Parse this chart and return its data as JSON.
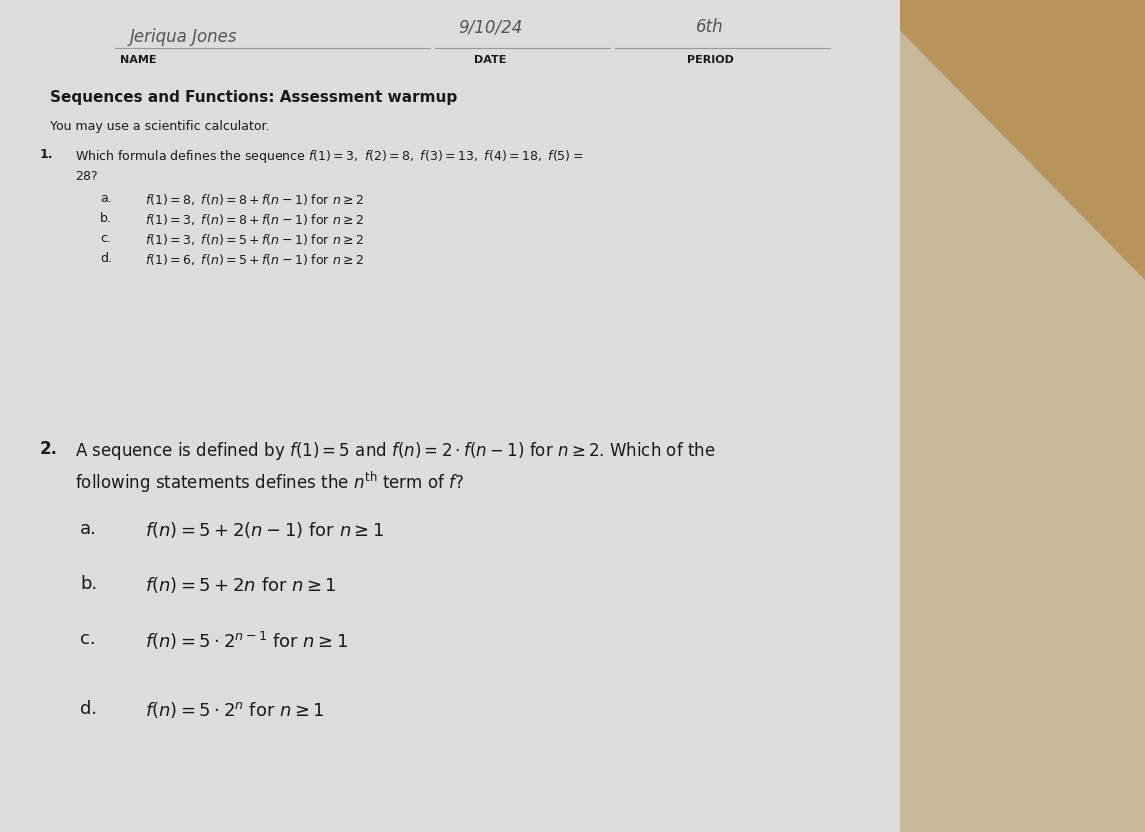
{
  "bg_color": "#c8b89a",
  "paper_color": "#dcdcdc",
  "wood_color": "#b8935a",
  "text_color": "#1a1a1a",
  "header_line_color": "#999999",
  "title": "Sequences and Functions: Assessment warmup",
  "subtitle": "You may use a scientific calculator.",
  "header_name_label": "NAME",
  "header_date_label": "DATE",
  "header_period_label": "PERIOD",
  "header_name_value": "Jeriqua Jones",
  "header_date_value": "9/10/24",
  "header_period_value": "6th",
  "q1_number": "1.",
  "q1_line1": "Which formula defines the sequence $f(1)=3,\\ f(2)=8,\\ f(3)=13,\\ f(4)=18,\\ f(5)=$",
  "q1_line2": "$28?$",
  "q1_labels": [
    "a.",
    "b.",
    "c.",
    "d."
  ],
  "q1_texts": [
    "$f(1)=8,\\ f(n)=8+f(n-1)$ for $n \\geq 2$",
    "$f(1)=3,\\ f(n)=8+f(n-1)$ for $n \\geq 2$",
    "$f(1)=3,\\ f(n)=5+f(n-1)$ for $n \\geq 2$",
    "$f(1)=6,\\ f(n)=5+f(n-1)$ for $n \\geq 2$"
  ],
  "q2_number": "2.",
  "q2_line1": "A sequence is defined by $f(1)=5$ and $f(n)=2 \\cdot f(n-1)$ for $n \\geq 2$. Which of the",
  "q2_line2": "following statements defines the $n^{\\mathrm{th}}$ term of $f$?",
  "q2_labels": [
    "a.",
    "b.",
    "c.",
    "d."
  ],
  "q2_texts": [
    "$f(n)=5+2(n-1)$ for $n \\geq 1$",
    "$f(n)=5+2n$ for $n \\geq 1$",
    "$f(n)=5 \\cdot 2^{n-1}$ for $n \\geq 1$",
    "$f(n)=5 \\cdot 2^{n}$ for $n \\geq 1$"
  ],
  "fs_header_label": 7,
  "fs_header_val": 9,
  "fs_title": 11,
  "fs_subtitle": 9,
  "fs_q_num": 9,
  "fs_q_text": 9,
  "fs_q1_opts": 9,
  "fs_q2_opts": 13
}
